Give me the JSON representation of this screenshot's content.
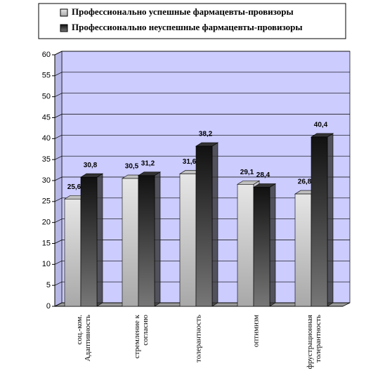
{
  "chart_data": {
    "type": "bar3d",
    "categories": [
      "соц.-ком. Адаптивность",
      "стремление к согласию",
      "толерантность",
      "оптимизм",
      "фрустрационная толерантность"
    ],
    "series": [
      {
        "name": "Профессионально успешные фармацевты-провизоры",
        "color": "#c0c0c0",
        "values": [
          25.6,
          30.5,
          31.6,
          29.1,
          26.8
        ],
        "value_labels": [
          "25,6",
          "30,5",
          "31,6",
          "29,1",
          "26,8"
        ]
      },
      {
        "name": "Профессионально неуспешные фармацевты-провизоры",
        "color": "#333333",
        "values": [
          30.8,
          31.2,
          38.2,
          28.4,
          40.4
        ],
        "value_labels": [
          "30,8",
          "31,2",
          "38,2",
          "28,4",
          "40,4"
        ]
      }
    ],
    "ylim": [
      0,
      60
    ],
    "yticks": [
      0,
      5,
      10,
      15,
      20,
      25,
      30,
      35,
      40,
      45,
      50,
      55,
      60
    ],
    "grid": true,
    "wall_color": "#ccccff",
    "legend": "top"
  }
}
